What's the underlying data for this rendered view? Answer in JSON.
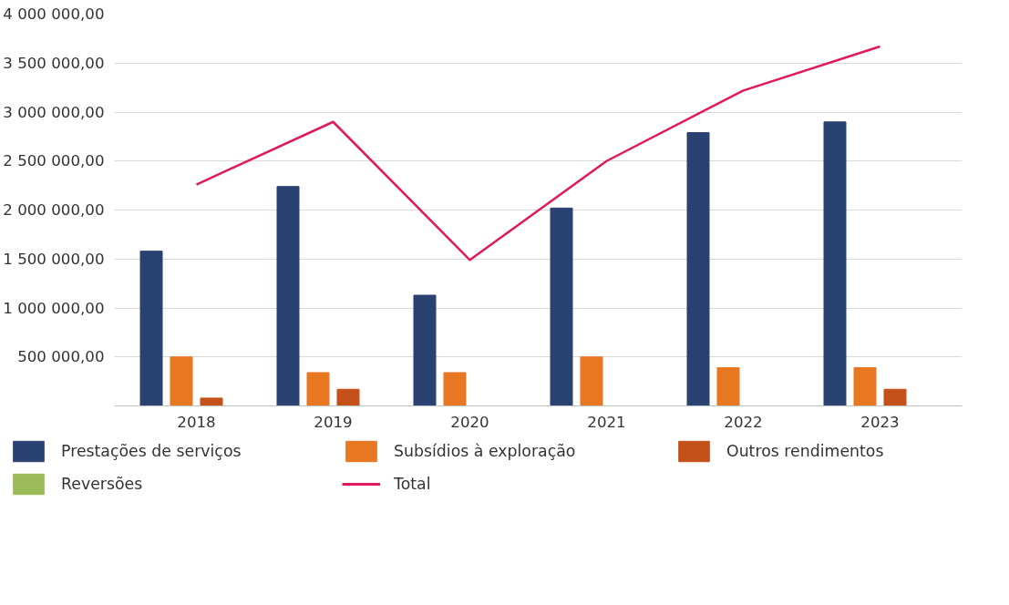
{
  "chart_data": {
    "type": "bar",
    "categories": [
      "2018",
      "2019",
      "2020",
      "2021",
      "2022",
      "2023"
    ],
    "series": [
      {
        "name": "Prestações de serviços",
        "color": "#2a4272",
        "values": [
          1580000,
          2240000,
          1130000,
          2020000,
          2790000,
          2900000
        ]
      },
      {
        "name": "Subsídios à exploração",
        "color": "#e87722",
        "values": [
          500000,
          340000,
          340000,
          500000,
          390000,
          390000
        ]
      },
      {
        "name": "Outros rendimentos",
        "color": "#c4501a",
        "values": [
          80000,
          170000,
          null,
          null,
          null,
          170000
        ]
      },
      {
        "name": "Reversões",
        "color": "#9bbb59",
        "values": [
          null,
          null,
          null,
          null,
          null,
          null
        ]
      },
      {
        "name": "Total",
        "type": "line",
        "color": "#e0195a",
        "values": [
          2260000,
          2900000,
          1490000,
          2500000,
          3220000,
          3670000
        ]
      }
    ],
    "ylim": [
      0,
      4000000
    ],
    "yticks": [
      {
        "value": 0,
        "label": null
      },
      {
        "value": 500000,
        "label": "500 000,00"
      },
      {
        "value": 1000000,
        "label": "1 000 000,00"
      },
      {
        "value": 1500000,
        "label": "1 500 000,00"
      },
      {
        "value": 2000000,
        "label": "2 000 000,00"
      },
      {
        "value": 2500000,
        "label": "2 500 000,00"
      },
      {
        "value": 3000000,
        "label": "3 000 000,00"
      },
      {
        "value": 3500000,
        "label": "3 500 000,00"
      },
      {
        "value": 4000000,
        "label": "4 000 000,00"
      }
    ],
    "grid": "y",
    "legend": "bottom"
  }
}
